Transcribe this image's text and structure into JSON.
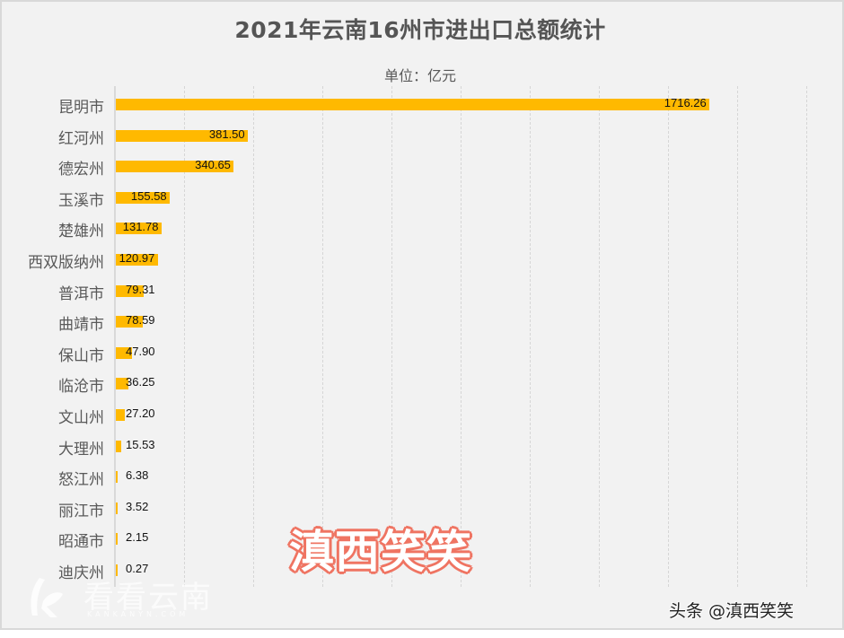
{
  "chart_data": {
    "type": "bar",
    "orientation": "horizontal",
    "title": "2021年云南16州市进出口总额统计",
    "subtitle": "单位：亿元",
    "xlabel": "",
    "ylabel": "",
    "xlim": [
      0,
      2000
    ],
    "grid": true,
    "grid_step": 200,
    "bar_color": "#ffb900",
    "categories": [
      "昆明市",
      "红河州",
      "德宏州",
      "玉溪市",
      "楚雄州",
      "西双版纳州",
      "普洱市",
      "曲靖市",
      "保山市",
      "临沧市",
      "文山州",
      "大理州",
      "怒江州",
      "丽江市",
      "昭通市",
      "迪庆州"
    ],
    "values": [
      1716.26,
      381.5,
      340.65,
      155.58,
      131.78,
      120.97,
      79.31,
      78.59,
      47.9,
      36.25,
      27.2,
      15.53,
      6.38,
      3.52,
      2.15,
      0.27
    ],
    "value_labels": [
      "1716.26",
      "381.50",
      "340.65",
      "155.58",
      "131.78",
      "120.97",
      "79.31",
      "78.59",
      "47.90",
      "36.25",
      "27.20",
      "15.53",
      "6.38",
      "3.52",
      "2.15",
      "0.27"
    ]
  },
  "watermarks": {
    "center": "滇西笑笑",
    "site_cn": "看看云南",
    "site_en": "KANKANYN.COM",
    "credit": "头条 @滇西笑笑"
  },
  "colors": {
    "background": "#f2f2f2",
    "bar": "#ffb900",
    "title": "#555555",
    "watermark_stroke": "#ef7462"
  }
}
